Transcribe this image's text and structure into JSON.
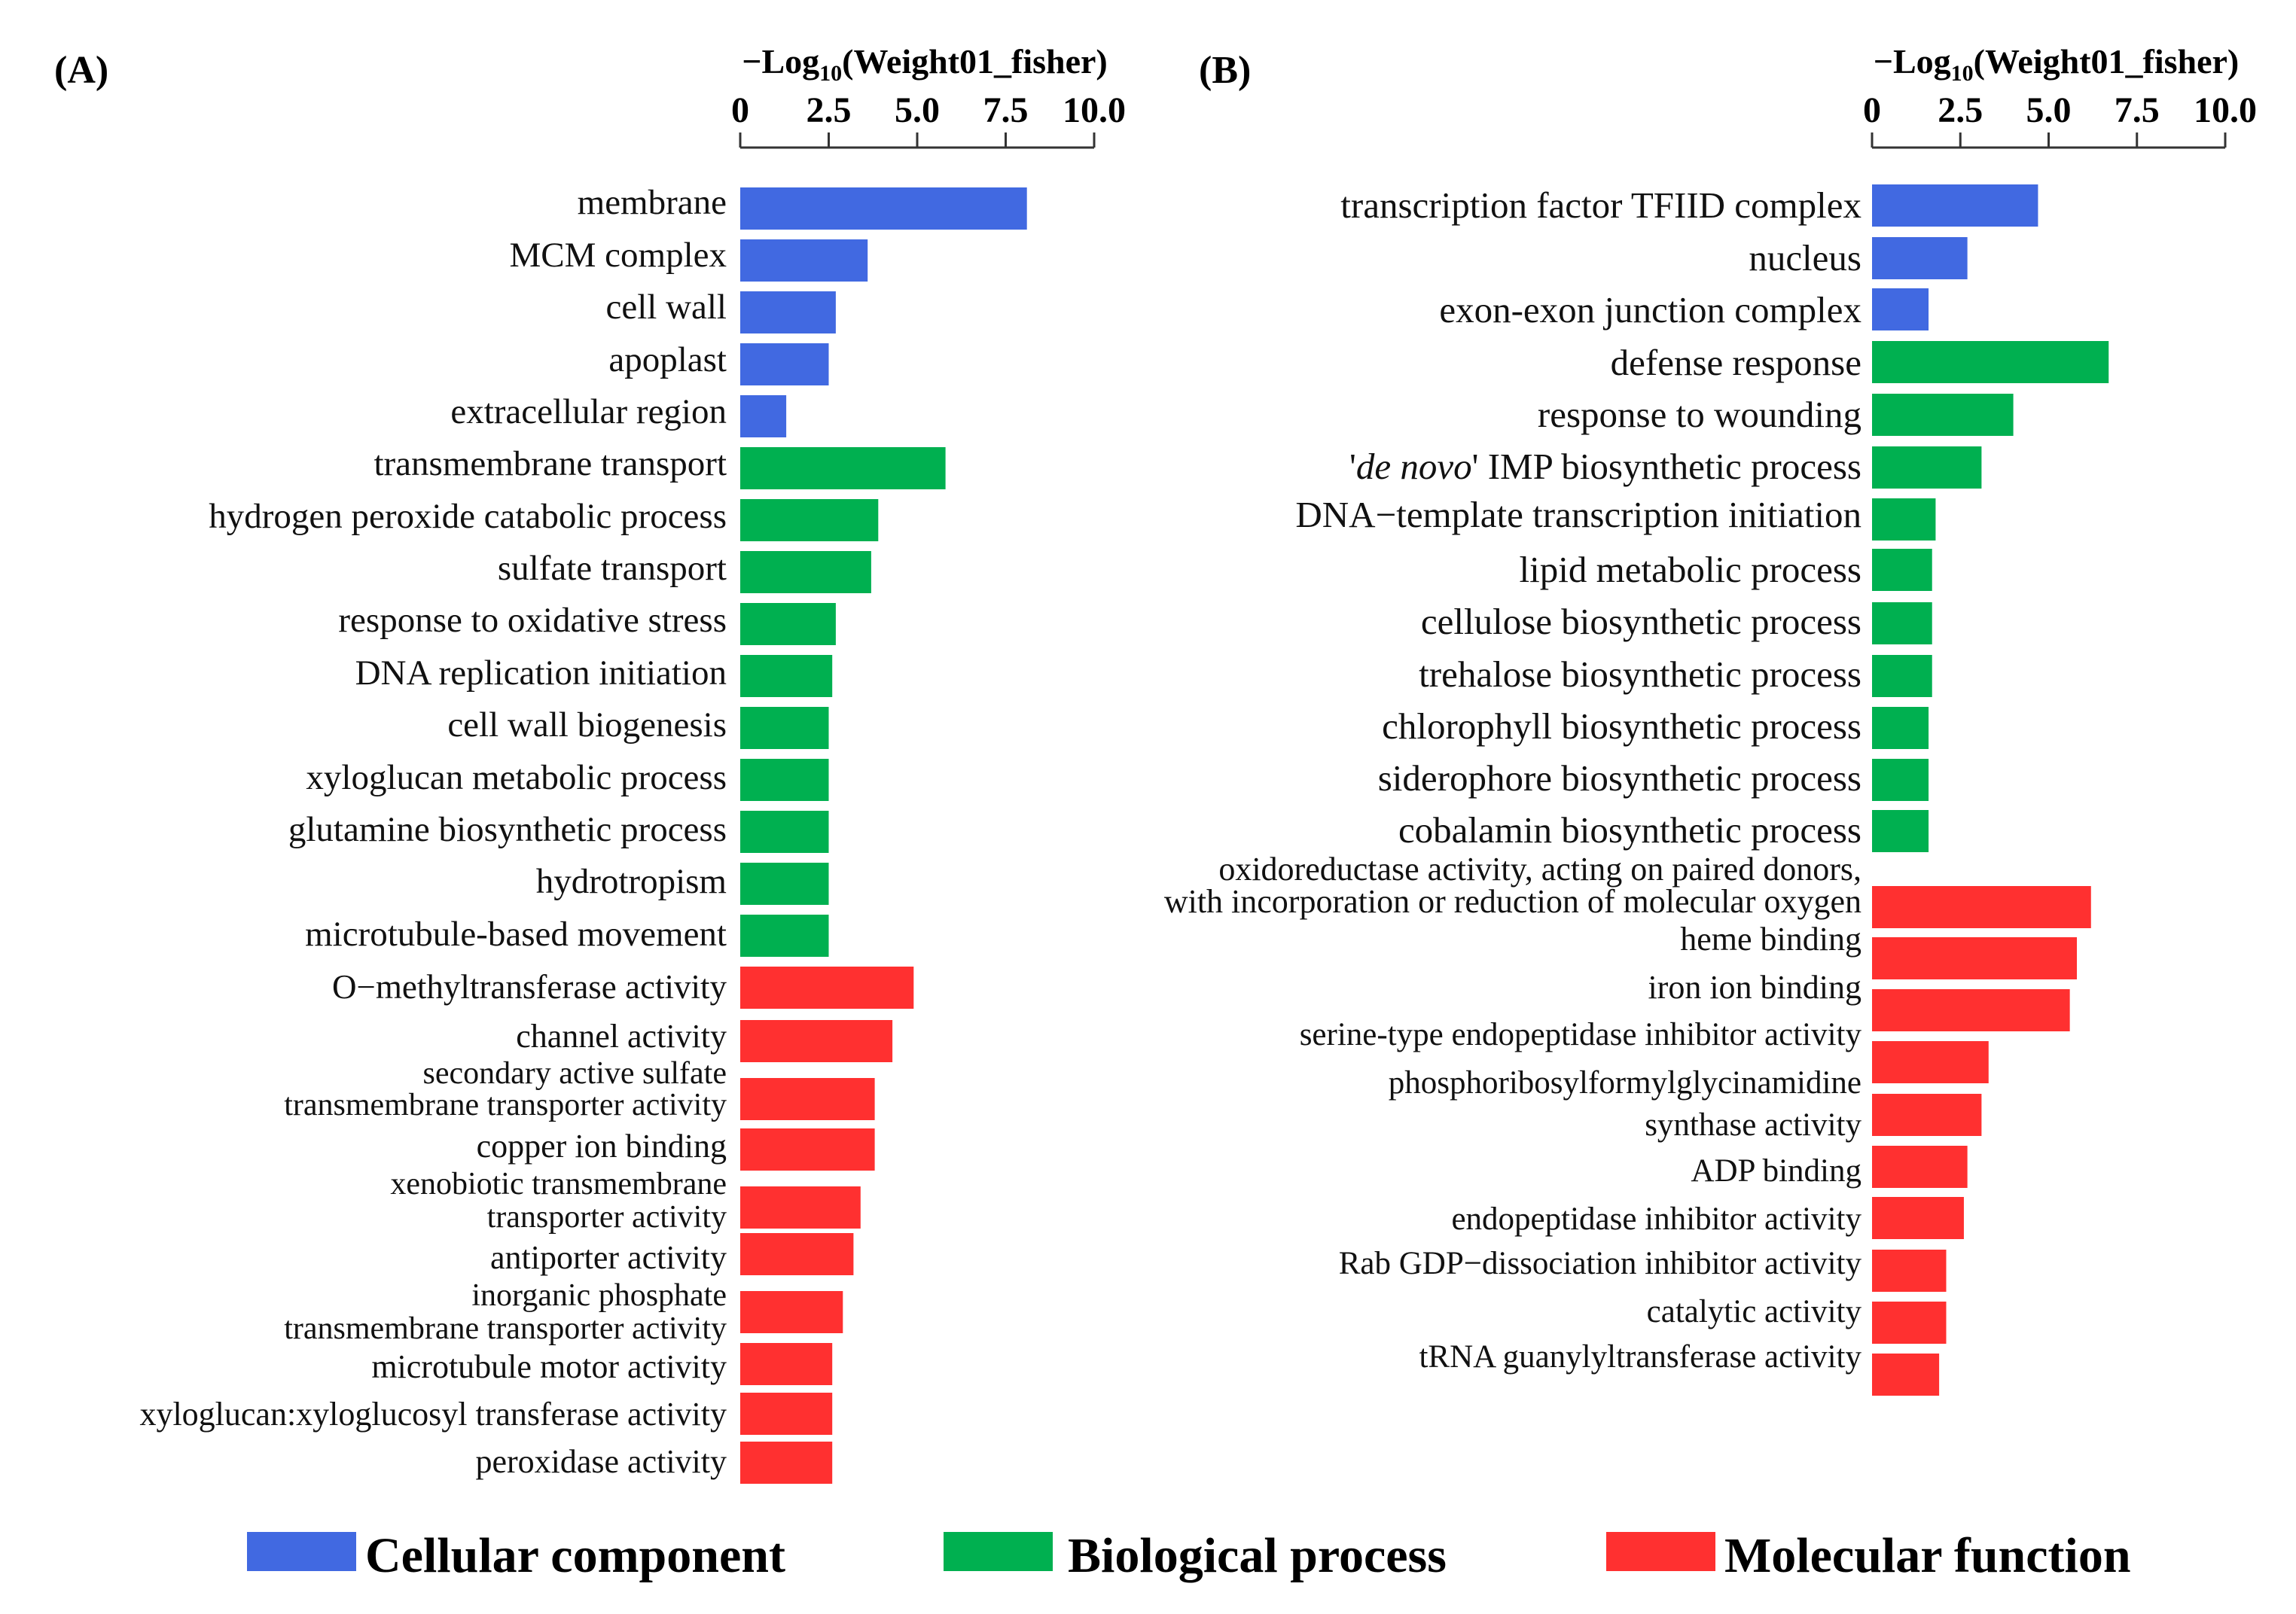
{
  "colors": {
    "cellular": "#4169e1",
    "biological": "#00b050",
    "molecular": "#ff3030"
  },
  "legend": [
    {
      "key": "cellular",
      "label": "Cellular component"
    },
    {
      "key": "biological",
      "label": "Biological process"
    },
    {
      "key": "molecular",
      "label": "Molecular function"
    }
  ],
  "chart_data": [
    {
      "type": "bar",
      "orientation": "horizontal",
      "panel_label": "(A)",
      "xlabel": {
        "prefix": "−Log",
        "sub": "10",
        "suffix": "(Weight01_fisher)"
      },
      "xlim": [
        0,
        10
      ],
      "xticks": [
        "0",
        "2.5",
        "5.0",
        "7.5",
        "10.0"
      ],
      "xtick_values": [
        0,
        2.5,
        5,
        7.5,
        10
      ],
      "categories": [
        [
          "membrane"
        ],
        [
          "MCM complex"
        ],
        [
          "cell wall"
        ],
        [
          "apoplast"
        ],
        [
          "extracellular region"
        ],
        [
          "transmembrane transport"
        ],
        [
          "hydrogen peroxide catabolic process"
        ],
        [
          "sulfate transport"
        ],
        [
          "response to oxidative stress"
        ],
        [
          "DNA replication initiation"
        ],
        [
          "cell wall biogenesis"
        ],
        [
          "xyloglucan metabolic process"
        ],
        [
          "glutamine biosynthetic process"
        ],
        [
          "hydrotropism"
        ],
        [
          "microtubule-based movement"
        ],
        [
          "O−methyltransferase activity"
        ],
        [
          "channel activity"
        ],
        [
          "secondary active sulfate",
          "transmembrane transporter activity"
        ],
        [
          "copper ion binding"
        ],
        [
          "xenobiotic transmembrane",
          "transporter activity"
        ],
        [
          "antiporter activity"
        ],
        [
          "inorganic phosphate",
          "transmembrane transporter activity"
        ],
        [
          "microtubule motor activity"
        ],
        [
          "xyloglucan:xyloglucosyl transferase activity"
        ],
        [
          "peroxidase activity"
        ]
      ],
      "groups": [
        "cellular",
        "cellular",
        "cellular",
        "cellular",
        "cellular",
        "biological",
        "biological",
        "biological",
        "biological",
        "biological",
        "biological",
        "biological",
        "biological",
        "biological",
        "biological",
        "molecular",
        "molecular",
        "molecular",
        "molecular",
        "molecular",
        "molecular",
        "molecular",
        "molecular",
        "molecular",
        "molecular"
      ],
      "values": [
        8.1,
        3.6,
        2.7,
        2.5,
        1.3,
        5.8,
        3.9,
        3.7,
        2.7,
        2.6,
        2.5,
        2.5,
        2.5,
        2.5,
        2.5,
        4.9,
        4.3,
        3.8,
        3.8,
        3.4,
        3.2,
        2.9,
        2.6,
        2.6,
        2.6
      ]
    },
    {
      "type": "bar",
      "orientation": "horizontal",
      "panel_label": "(B)",
      "xlabel": {
        "prefix": "−Log",
        "sub": "10",
        "suffix": "(Weight01_fisher)"
      },
      "xlim": [
        0,
        10
      ],
      "xticks": [
        "0",
        "2.5",
        "5.0",
        "7.5",
        "10.0"
      ],
      "xtick_values": [
        0,
        2.5,
        5,
        7.5,
        10
      ],
      "categories": [
        [
          "transcription factor TFIID complex"
        ],
        [
          "nucleus"
        ],
        [
          "exon-exon junction complex"
        ],
        [
          "defense response"
        ],
        [
          "response to wounding"
        ],
        [
          "'de novo' IMP biosynthetic process"
        ],
        [
          "DNA−template transcription initiation"
        ],
        [
          "lipid metabolic process"
        ],
        [
          "cellulose biosynthetic process"
        ],
        [
          "trehalose biosynthetic process"
        ],
        [
          "chlorophyll biosynthetic process"
        ],
        [
          "siderophore biosynthetic process"
        ],
        [
          "cobalamin biosynthetic process"
        ],
        [
          "oxidoreductase activity, acting on paired donors,",
          "with incorporation or reduction of molecular oxygen"
        ],
        [
          "heme binding"
        ],
        [
          "iron ion binding"
        ],
        [
          "serine-type endopeptidase inhibitor activity"
        ],
        [
          "phosphoribosylformylglycinamidine",
          "synthase activity"
        ],
        [
          "ADP binding"
        ],
        [
          "endopeptidase inhibitor activity"
        ],
        [
          "Rab GDP−dissociation inhibitor activity"
        ],
        [
          "catalytic activity"
        ],
        [
          "tRNA guanylyltransferase activity"
        ]
      ],
      "groups": [
        "cellular",
        "cellular",
        "cellular",
        "biological",
        "biological",
        "biological",
        "biological",
        "biological",
        "biological",
        "biological",
        "biological",
        "biological",
        "biological",
        "molecular",
        "molecular",
        "molecular",
        "molecular",
        "molecular",
        "molecular",
        "molecular",
        "molecular",
        "molecular",
        "molecular"
      ],
      "values": [
        4.7,
        2.7,
        1.6,
        6.7,
        4.0,
        3.1,
        1.8,
        1.7,
        1.7,
        1.7,
        1.6,
        1.6,
        1.6,
        6.2,
        5.8,
        5.6,
        3.3,
        3.1,
        2.7,
        2.6,
        2.1,
        2.1,
        1.9
      ]
    }
  ]
}
